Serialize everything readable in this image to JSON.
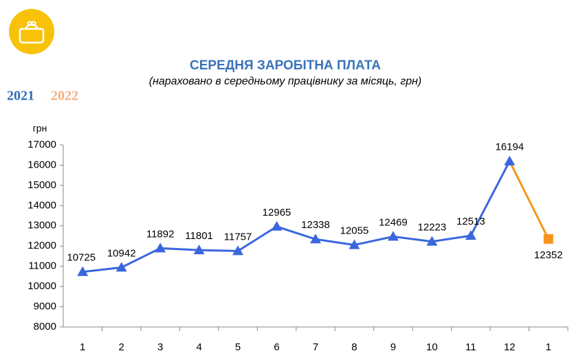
{
  "chart_data": {
    "type": "line",
    "title": "СЕРЕДНЯ ЗАРОБІТНА ПЛАТА",
    "subtitle": "(нараховано в середньому працівнику за місяць, грн)",
    "y_label": "грн",
    "categories": [
      "1",
      "2",
      "3",
      "4",
      "5",
      "6",
      "7",
      "8",
      "9",
      "10",
      "11",
      "12",
      "1"
    ],
    "series": [
      {
        "name": "2021",
        "color": "#3a66dd",
        "legend_color": "#2e6db4",
        "marker": "triangle",
        "values": [
          10725,
          10942,
          11892,
          11801,
          11757,
          12965,
          12338,
          12055,
          12469,
          12223,
          12513,
          16194,
          null
        ]
      },
      {
        "name": "2022",
        "color": "#f7941d",
        "legend_color": "#f4b183",
        "marker": "square",
        "values": [
          null,
          null,
          null,
          null,
          null,
          null,
          null,
          null,
          null,
          null,
          null,
          null,
          12352
        ]
      }
    ],
    "ylim": [
      8000,
      17000
    ],
    "yticks": [
      8000,
      9000,
      10000,
      11000,
      12000,
      13000,
      14000,
      15000,
      16000,
      17000
    ],
    "grid": false
  }
}
